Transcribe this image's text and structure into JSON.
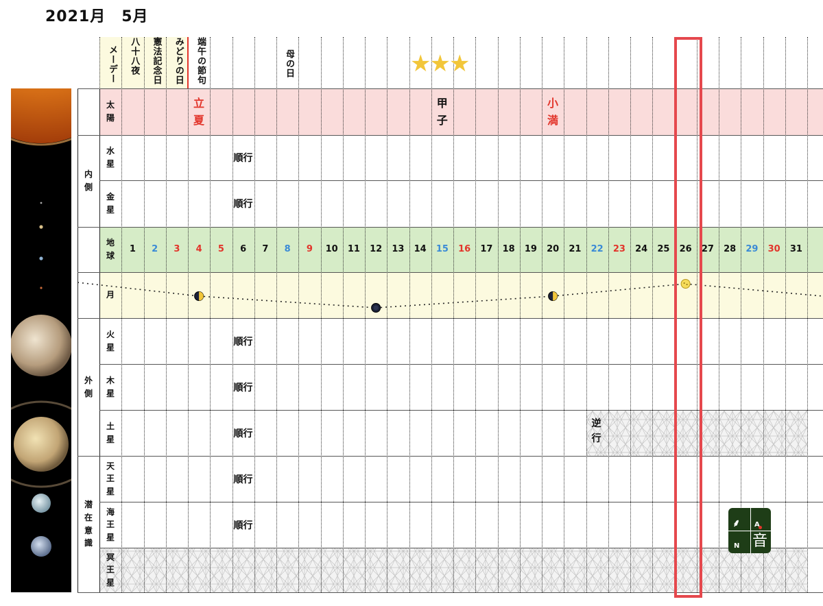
{
  "title": "2021月　5月",
  "holidays": [
    {
      "col": 1,
      "text": "メーデー"
    },
    {
      "col": 2,
      "text": "八十八夜"
    },
    {
      "col": 3,
      "text": "憲法記念日"
    },
    {
      "col": 4,
      "text": "みどりの日"
    },
    {
      "col": 5,
      "text": "端午の節句"
    },
    {
      "col": 9,
      "text": "母の日"
    }
  ],
  "stars": "★★★",
  "rows": [
    {
      "key": "sun",
      "label": "太陽",
      "band": "#fadcdb"
    },
    {
      "key": "mercury",
      "label": "水星",
      "band": "none"
    },
    {
      "key": "venus",
      "label": "金星",
      "band": "none"
    },
    {
      "key": "earth",
      "label": "地球",
      "band": "#d6ecc7"
    },
    {
      "key": "moon",
      "label": "月",
      "band": "#fcfadf"
    },
    {
      "key": "mars",
      "label": "火星",
      "band": "none"
    },
    {
      "key": "jupiter",
      "label": "木星",
      "band": "none"
    },
    {
      "key": "saturn",
      "label": "土星",
      "band": "none"
    },
    {
      "key": "uranus",
      "label": "天王星",
      "band": "none"
    },
    {
      "key": "neptune",
      "label": "海王星",
      "band": "none"
    },
    {
      "key": "pluto",
      "label": "冥王星",
      "band": "none"
    }
  ],
  "groups": [
    {
      "label": "内側",
      "rows": [
        1,
        2
      ]
    },
    {
      "label": "外側",
      "rows": [
        5,
        7
      ]
    },
    {
      "label": "潜在意識",
      "rows": [
        8,
        10
      ]
    }
  ],
  "sun_terms": [
    {
      "col": 5,
      "text": "立夏",
      "color": "#e2352b"
    },
    {
      "col": 16,
      "text": "甲子",
      "color": "#111111"
    },
    {
      "col": 21,
      "text": "小満",
      "color": "#e2352b"
    }
  ],
  "days": [
    {
      "n": "1",
      "color": "#111111"
    },
    {
      "n": "2",
      "color": "#3a8ad6"
    },
    {
      "n": "3",
      "color": "#e2352b"
    },
    {
      "n": "4",
      "color": "#e2352b"
    },
    {
      "n": "5",
      "color": "#e2352b"
    },
    {
      "n": "6",
      "color": "#111111"
    },
    {
      "n": "7",
      "color": "#111111"
    },
    {
      "n": "8",
      "color": "#3a8ad6"
    },
    {
      "n": "9",
      "color": "#e2352b"
    },
    {
      "n": "10",
      "color": "#111111"
    },
    {
      "n": "11",
      "color": "#111111"
    },
    {
      "n": "12",
      "color": "#111111"
    },
    {
      "n": "13",
      "color": "#111111"
    },
    {
      "n": "14",
      "color": "#111111"
    },
    {
      "n": "15",
      "color": "#3a8ad6"
    },
    {
      "n": "16",
      "color": "#e2352b"
    },
    {
      "n": "17",
      "color": "#111111"
    },
    {
      "n": "18",
      "color": "#111111"
    },
    {
      "n": "19",
      "color": "#111111"
    },
    {
      "n": "20",
      "color": "#111111"
    },
    {
      "n": "21",
      "color": "#111111"
    },
    {
      "n": "22",
      "color": "#3a8ad6"
    },
    {
      "n": "23",
      "color": "#e2352b"
    },
    {
      "n": "24",
      "color": "#111111"
    },
    {
      "n": "25",
      "color": "#111111"
    },
    {
      "n": "26",
      "color": "#111111"
    },
    {
      "n": "27",
      "color": "#111111"
    },
    {
      "n": "28",
      "color": "#111111"
    },
    {
      "n": "29",
      "color": "#3a8ad6"
    },
    {
      "n": "30",
      "color": "#e2352b"
    },
    {
      "n": "31",
      "color": "#111111"
    }
  ],
  "moon_phases": [
    {
      "col": 4,
      "phase": "first-quarter"
    },
    {
      "col": 12,
      "phase": "new-moon"
    },
    {
      "col": 20,
      "phase": "first-quarter"
    },
    {
      "col": 26,
      "phase": "full-moon"
    }
  ],
  "status": [
    {
      "row": 1,
      "col": 7,
      "text": "順行"
    },
    {
      "row": 2,
      "col": 7,
      "text": "順行"
    },
    {
      "row": 5,
      "col": 7,
      "text": "順行"
    },
    {
      "row": 6,
      "col": 7,
      "text": "順行"
    },
    {
      "row": 7,
      "col": 7,
      "text": "順行"
    },
    {
      "row": 8,
      "col": 7,
      "text": "順行"
    },
    {
      "row": 9,
      "col": 7,
      "text": "順行"
    },
    {
      "row": 7,
      "col": 23,
      "text": "逆行"
    }
  ],
  "retrograde": [
    {
      "row": 7,
      "from_col": 23,
      "to_col": 32
    },
    {
      "row": 10,
      "from_col": 1,
      "to_col": 32
    }
  ],
  "highlight_col": 26,
  "logo": {
    "letter_a": "A",
    "letter_n": "N",
    "kanji": "音"
  },
  "colors": {
    "accent_red": "#e5484d",
    "sun_band": "#fadcdb",
    "earth_band": "#d6ecc7",
    "moon_band": "#fcfadf",
    "logo_bg": "#1e3d17"
  }
}
